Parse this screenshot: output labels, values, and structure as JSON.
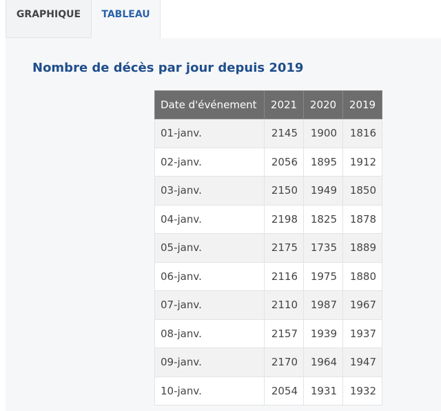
{
  "tabs": [
    "GRAPHIQUE",
    "TABLEAU"
  ],
  "title": "Nombre de décès par jour depuis 2019",
  "table": {
    "header": [
      "Date d'événement",
      "2021",
      "2020",
      "2019"
    ],
    "rows": [
      [
        "01-janv.",
        2145,
        1900,
        1816
      ],
      [
        "02-janv.",
        2056,
        1895,
        1912
      ],
      [
        "03-janv.",
        2150,
        1949,
        1850
      ],
      [
        "04-janv.",
        2198,
        1825,
        1878
      ],
      [
        "05-janv.",
        2175,
        1735,
        1889
      ],
      [
        "06-janv.",
        2116,
        1975,
        1880
      ],
      [
        "07-janv.",
        2110,
        1987,
        1967
      ],
      [
        "08-janv.",
        2157,
        1939,
        1937
      ],
      [
        "09-janv.",
        2170,
        1964,
        1947
      ],
      [
        "10-janv.",
        2054,
        1931,
        1932
      ]
    ]
  }
}
